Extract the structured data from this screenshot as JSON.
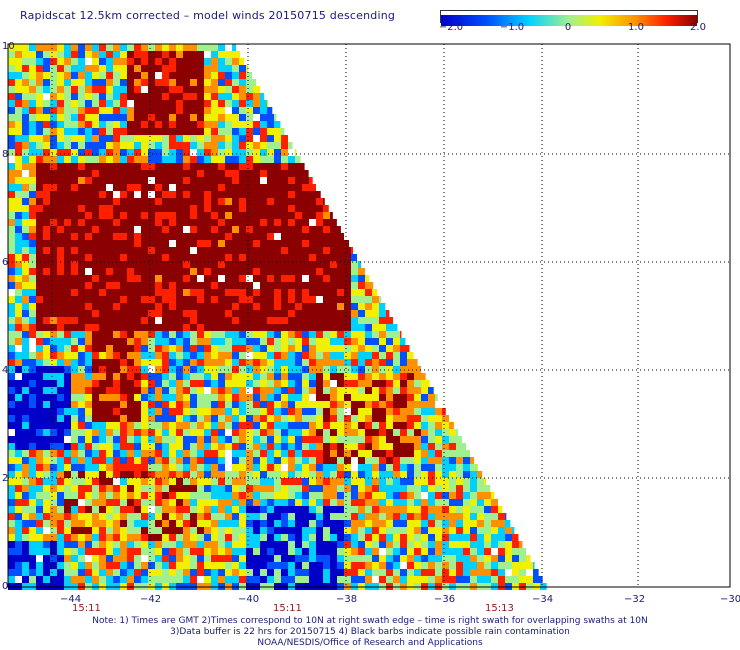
{
  "title": "Rapidscat 12.5km corrected – model winds 20150715 descending",
  "colorbar": {
    "ticks": [
      "−2.0",
      "−1.0",
      "0",
      "1.0",
      "2.0"
    ],
    "colors": [
      "#0000c8",
      "#0050ff",
      "#00d0ff",
      "#a0f090",
      "#f0f000",
      "#ff9000",
      "#ff2000",
      "#8b0000"
    ]
  },
  "map": {
    "x_ticks": [
      "−44",
      "−42",
      "−40",
      "−38",
      "−36",
      "−34",
      "−32",
      "−30"
    ],
    "y_ticks": [
      "0",
      "2",
      "4",
      "6",
      "8",
      "10"
    ],
    "times": [
      "15:11",
      "15:11",
      "15:13"
    ]
  },
  "notes": [
    "Note: 1) Times are GMT 2)Times correspond to 10N at right swath edge – time is right swath for overlapping swaths at 10N",
    "3)Data buffer is 22 hrs for 20150715 4) Black barbs indicate possible rain contamination",
    "NOAA/NESDIS/Office of Research and Applications"
  ]
}
